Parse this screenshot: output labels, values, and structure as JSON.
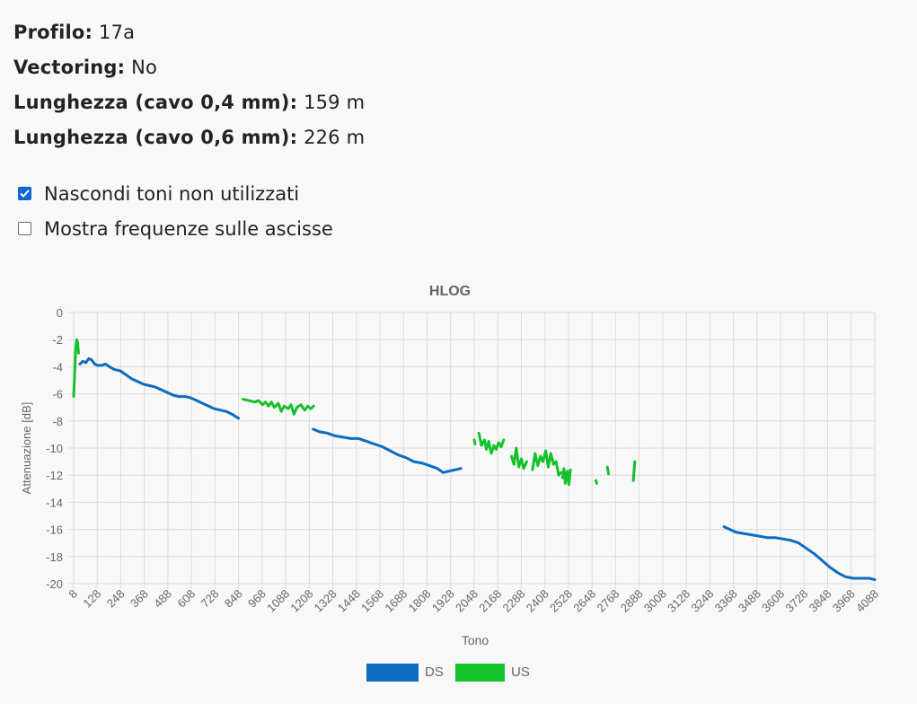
{
  "info": [
    {
      "label": "Profilo",
      "value": "17a"
    },
    {
      "label": "Vectoring",
      "value": "No"
    },
    {
      "label": "Lunghezza (cavo 0,4 mm)",
      "value": "159 m"
    },
    {
      "label": "Lunghezza (cavo 0,6 mm)",
      "value": "226 m"
    }
  ],
  "options": [
    {
      "label": "Nascondi toni non utilizzati",
      "checked": true
    },
    {
      "label": "Mostra frequenze sulle ascisse",
      "checked": false
    }
  ],
  "chart_data": {
    "type": "line",
    "title": "HLOG",
    "xlabel": "Tono",
    "ylabel": "Attenuazione [dB]",
    "xlim": [
      8,
      4088
    ],
    "ylim": [
      -20,
      0
    ],
    "x_ticks": [
      8,
      128,
      248,
      368,
      488,
      608,
      728,
      848,
      968,
      1088,
      1208,
      1328,
      1448,
      1568,
      1688,
      1808,
      1928,
      2048,
      2168,
      2288,
      2408,
      2528,
      2648,
      2768,
      2888,
      3008,
      3128,
      3248,
      3368,
      3488,
      3608,
      3728,
      3848,
      3968,
      4088
    ],
    "y_ticks": [
      0,
      -2,
      -4,
      -6,
      -8,
      -10,
      -12,
      -14,
      -16,
      -18,
      -20
    ],
    "grid": true,
    "legend": "bottom",
    "series": [
      {
        "name": "DS",
        "color": "#0b6cc0",
        "segments": [
          [
            [
              40,
              -3.8
            ],
            [
              55,
              -3.6
            ],
            [
              70,
              -3.7
            ],
            [
              85,
              -3.4
            ],
            [
              100,
              -3.5
            ],
            [
              115,
              -3.8
            ],
            [
              130,
              -3.9
            ],
            [
              150,
              -3.9
            ],
            [
              170,
              -3.8
            ],
            [
              190,
              -4.0
            ],
            [
              215,
              -4.2
            ],
            [
              245,
              -4.3
            ],
            [
              275,
              -4.6
            ],
            [
              305,
              -4.9
            ],
            [
              335,
              -5.1
            ],
            [
              365,
              -5.3
            ],
            [
              395,
              -5.4
            ],
            [
              425,
              -5.5
            ],
            [
              455,
              -5.7
            ],
            [
              485,
              -5.9
            ],
            [
              515,
              -6.1
            ],
            [
              545,
              -6.2
            ],
            [
              575,
              -6.2
            ],
            [
              605,
              -6.3
            ],
            [
              635,
              -6.5
            ],
            [
              665,
              -6.7
            ],
            [
              695,
              -6.9
            ],
            [
              725,
              -7.1
            ],
            [
              755,
              -7.2
            ],
            [
              785,
              -7.3
            ],
            [
              815,
              -7.5
            ],
            [
              848,
              -7.8
            ]
          ],
          [
            [
              1228,
              -8.6
            ],
            [
              1260,
              -8.8
            ],
            [
              1300,
              -8.9
            ],
            [
              1340,
              -9.1
            ],
            [
              1380,
              -9.2
            ],
            [
              1420,
              -9.3
            ],
            [
              1460,
              -9.3
            ],
            [
              1500,
              -9.5
            ],
            [
              1540,
              -9.7
            ],
            [
              1580,
              -9.9
            ],
            [
              1620,
              -10.2
            ],
            [
              1660,
              -10.5
            ],
            [
              1700,
              -10.7
            ],
            [
              1740,
              -11.0
            ],
            [
              1780,
              -11.1
            ],
            [
              1820,
              -11.3
            ],
            [
              1860,
              -11.5
            ],
            [
              1890,
              -11.8
            ],
            [
              1920,
              -11.7
            ],
            [
              1950,
              -11.6
            ],
            [
              1980,
              -11.5
            ]
          ],
          [
            [
              3320,
              -15.8
            ],
            [
              3350,
              -16.0
            ],
            [
              3380,
              -16.2
            ],
            [
              3420,
              -16.3
            ],
            [
              3460,
              -16.4
            ],
            [
              3500,
              -16.5
            ],
            [
              3540,
              -16.6
            ],
            [
              3580,
              -16.6
            ],
            [
              3620,
              -16.7
            ],
            [
              3660,
              -16.8
            ],
            [
              3700,
              -17.0
            ],
            [
              3740,
              -17.4
            ],
            [
              3780,
              -17.8
            ],
            [
              3820,
              -18.3
            ],
            [
              3860,
              -18.8
            ],
            [
              3900,
              -19.2
            ],
            [
              3940,
              -19.5
            ],
            [
              3980,
              -19.6
            ],
            [
              4020,
              -19.6
            ],
            [
              4060,
              -19.6
            ],
            [
              4088,
              -19.7
            ]
          ]
        ]
      },
      {
        "name": "US",
        "color": "#13c22b",
        "segments": [
          [
            [
              8,
              -6.2
            ],
            [
              13,
              -4.5
            ],
            [
              18,
              -2.8
            ],
            [
              23,
              -2.0
            ],
            [
              28,
              -2.2
            ],
            [
              33,
              -3.0
            ]
          ],
          [
            [
              870,
              -6.4
            ],
            [
              900,
              -6.5
            ],
            [
              930,
              -6.6
            ],
            [
              950,
              -6.5
            ],
            [
              970,
              -6.8
            ],
            [
              985,
              -6.6
            ],
            [
              1000,
              -6.9
            ],
            [
              1015,
              -6.6
            ],
            [
              1030,
              -7.0
            ],
            [
              1050,
              -6.7
            ],
            [
              1065,
              -7.3
            ],
            [
              1080,
              -6.9
            ],
            [
              1100,
              -7.1
            ],
            [
              1115,
              -6.8
            ],
            [
              1130,
              -7.5
            ],
            [
              1145,
              -7.0
            ],
            [
              1165,
              -6.8
            ],
            [
              1185,
              -7.2
            ],
            [
              1200,
              -6.9
            ],
            [
              1215,
              -7.1
            ],
            [
              1230,
              -6.9
            ]
          ],
          [
            [
              2048,
              -9.4
            ],
            [
              2052,
              -9.7
            ]
          ],
          [
            [
              2072,
              -8.9
            ],
            [
              2085,
              -9.8
            ],
            [
              2100,
              -9.4
            ],
            [
              2110,
              -10.1
            ],
            [
              2122,
              -9.5
            ],
            [
              2135,
              -10.4
            ],
            [
              2148,
              -9.8
            ],
            [
              2160,
              -10.1
            ],
            [
              2172,
              -9.6
            ],
            [
              2185,
              -9.9
            ],
            [
              2198,
              -9.4
            ]
          ],
          [
            [
              2238,
              -10.6
            ],
            [
              2250,
              -11.2
            ],
            [
              2262,
              -10.0
            ],
            [
              2275,
              -11.4
            ],
            [
              2288,
              -10.8
            ],
            [
              2300,
              -11.5
            ],
            [
              2315,
              -11.0
            ]
          ],
          [
            [
              2345,
              -11.6
            ],
            [
              2358,
              -10.4
            ],
            [
              2372,
              -11.3
            ],
            [
              2385,
              -10.6
            ],
            [
              2398,
              -11.0
            ],
            [
              2412,
              -10.2
            ],
            [
              2425,
              -11.4
            ],
            [
              2438,
              -10.4
            ],
            [
              2452,
              -11.2
            ],
            [
              2465,
              -11.0
            ],
            [
              2478,
              -12.0
            ],
            [
              2490,
              -11.8
            ]
          ],
          [
            [
              2498,
              -12.2
            ],
            [
              2505,
              -11.5
            ],
            [
              2512,
              -12.6
            ],
            [
              2522,
              -11.7
            ],
            [
              2530,
              -12.7
            ],
            [
              2538,
              -11.6
            ]
          ],
          [
            [
              2668,
              -12.4
            ],
            [
              2672,
              -12.6
            ]
          ],
          [
            [
              2726,
              -11.4
            ],
            [
              2732,
              -11.9
            ]
          ],
          [
            [
              2858,
              -12.4
            ],
            [
              2866,
              -11.0
            ]
          ]
        ]
      }
    ]
  }
}
